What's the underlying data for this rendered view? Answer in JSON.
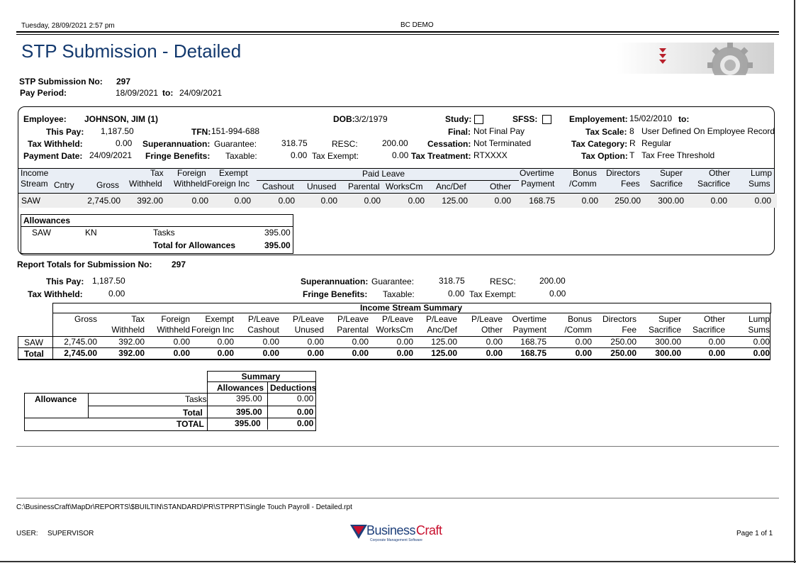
{
  "header": {
    "datetime": "Tuesday, 28/09/2021  2:57 pm",
    "company": "BC DEMO",
    "title": "STP Submission - Detailed"
  },
  "submission": {
    "no_label": "STP Submission No:",
    "no_value": "297",
    "pay_period_label": "Pay Period:",
    "period_from": "18/09/2021",
    "to_label": "to:",
    "period_to": "24/09/2021"
  },
  "employee": {
    "employee_label": "Employee:",
    "name": "JOHNSON, JIM  (1)",
    "dob_label": "DOB:",
    "dob": "3/2/1979",
    "study_label": "Study:",
    "sfss_label": "SFSS:",
    "employment_label": "Employement:",
    "employment_from": "15/02/2010",
    "employment_to_label": "to:",
    "this_pay_label": "This Pay:",
    "this_pay": "1,187.50",
    "tfn_label": "TFN:",
    "tfn": "151-994-688",
    "final_label": "Final:",
    "final": "Not Final Pay",
    "tax_scale_label": "Tax Scale:",
    "tax_scale_code": "8",
    "tax_scale": "User Defined On Employee Record",
    "tax_withheld_label": "Tax Withheld:",
    "tax_withheld": "0.00",
    "super_label": "Superannuation:",
    "guarantee_label": "Guarantee:",
    "guarantee": "318.75",
    "resc_label": "RESC:",
    "resc": "200.00",
    "cessation_label": "Cessation:",
    "cessation": "Not Terminated",
    "tax_category_label": "Tax Category:",
    "tax_category_code": "R",
    "tax_category": "Regular",
    "payment_date_label": "Payment Date:",
    "payment_date": "24/09/2021",
    "fringe_label": "Fringe Benefits:",
    "taxable_label": "Taxable:",
    "taxable": "0.00",
    "tax_exempt_label": "Tax Exempt:",
    "tax_exempt": "0.00",
    "tax_treatment_label": "Tax Treatment:",
    "tax_treatment": "RTXXXX",
    "tax_option_label": "Tax Option:",
    "tax_option_code": "T",
    "tax_option": "Tax Free Threshold"
  },
  "detail_table": {
    "h_income": "Income",
    "h_stream": "Stream",
    "h_cntry": "Cntry",
    "h_gross": "Gross",
    "h_tax1": "Tax",
    "h_tax2": "Withheld",
    "h_foreign1": "Foreign",
    "h_foreign2": "Withheld",
    "h_exempt1": "Exempt",
    "h_exempt2": "Foreign Inc",
    "h_paid_leave": "Paid Leave",
    "h_cashout": "Cashout",
    "h_unused": "Unused",
    "h_parental": "Parental",
    "h_workscm": "WorksCm",
    "h_ancdef": "Anc/Def",
    "h_other": "Other",
    "h_overtime1": "Overtime",
    "h_overtime2": "Payment",
    "h_bonus1": "Bonus",
    "h_bonus2": "/Comm",
    "h_directors1": "Directors",
    "h_directors2": "Fees",
    "h_super1": "Super",
    "h_super2": "Sacrifice",
    "h_othersac1": "Other",
    "h_othersac2": "Sacrifice",
    "h_lump1": "Lump",
    "h_lump2": "Sums",
    "row": {
      "stream": "SAW",
      "gross": "2,745.00",
      "tax": "392.00",
      "foreign": "0.00",
      "exempt": "0.00",
      "cashout": "0.00",
      "unused": "0.00",
      "parental": "0.00",
      "workscm": "0.00",
      "ancdef": "125.00",
      "other": "0.00",
      "overtime": "168.75",
      "bonus": "0.00",
      "directors": "250.00",
      "super": "300.00",
      "othersac": "0.00",
      "lump": "0.00"
    }
  },
  "allowances": {
    "title": "Allowances",
    "stream": "SAW",
    "code": "KN",
    "amount": "395.00",
    "desc": "Tasks",
    "total_amount": "395.00",
    "total_label": "Total for Allowances"
  },
  "report_totals": {
    "title": "Report Totals for Submission No:",
    "no": "297",
    "this_pay_label": "This Pay:",
    "this_pay": "1,187.50",
    "tax_withheld_label": "Tax Withheld:",
    "tax_withheld": "0.00",
    "super_label": "Superannuation:",
    "guarantee_label": "Guarantee:",
    "guarantee": "318.75",
    "resc_label": "RESC:",
    "resc": "200.00",
    "fringe_label": "Fringe Benefits:",
    "taxable_label": "Taxable:",
    "taxable": "0.00",
    "tax_exempt_label": "Tax Exempt:",
    "tax_exempt": "0.00"
  },
  "iss": {
    "title": "Income Stream Summary",
    "h1": [
      "Gross",
      "Tax",
      "Foreign",
      "Exempt",
      "P/Leave",
      "P/Leave",
      "P/Leave",
      "P/Leave",
      "P/Leave",
      "P/Leave",
      "Overtime",
      "Bonus",
      "Directors",
      "Super",
      "Other",
      "Lump"
    ],
    "h2": [
      "",
      "Withheld",
      "Withheld",
      "Foreign Inc",
      "Cashout",
      "Unused",
      "Parental",
      "WorksCm",
      "Anc/Def",
      "Other",
      "Payment",
      "/Comm",
      "Fee",
      "Sacrifice",
      "Sacrifice",
      "Sums"
    ],
    "row_label": "SAW",
    "row": [
      "2,745.00",
      "392.00",
      "0.00",
      "0.00",
      "0.00",
      "0.00",
      "0.00",
      "0.00",
      "125.00",
      "0.00",
      "168.75",
      "0.00",
      "250.00",
      "300.00",
      "0.00",
      "0.00"
    ],
    "total_label": "Total",
    "total": [
      "2,745.00",
      "392.00",
      "0.00",
      "0.00",
      "0.00",
      "0.00",
      "0.00",
      "0.00",
      "125.00",
      "0.00",
      "168.75",
      "0.00",
      "250.00",
      "300.00",
      "0.00",
      "0.00"
    ]
  },
  "summary": {
    "title": "Summary",
    "h_allowances": "Allowances",
    "h_deductions": "Deductions",
    "row_label": "Allowance",
    "tasks_label": "Tasks",
    "tasks_allow": "395.00",
    "tasks_ded": "0.00",
    "total_label": "Total",
    "total_allow": "395.00",
    "total_ded": "0.00",
    "grand_label": "TOTAL",
    "grand_allow": "395.00",
    "grand_ded": "0.00"
  },
  "footer": {
    "path": "C:\\BusinessCraft\\MapDr\\REPORTS\\$BUILTIN\\STANDARD\\PR\\STPRPT\\Single Touch Payroll - Detailed.rpt",
    "user_label": "USER:",
    "user": "SUPERVISOR",
    "logo_text_a": "Business",
    "logo_text_b": "Craft",
    "logo_tagline": "Corporate Management Software",
    "page": "Page 1 of 1"
  },
  "colors": {
    "title_blue": "#13396e",
    "logo_red": "#c8102e",
    "logo_blue": "#1d3f7a",
    "row_shade": "#eeeeee",
    "header_shade": "#e9eef5"
  }
}
